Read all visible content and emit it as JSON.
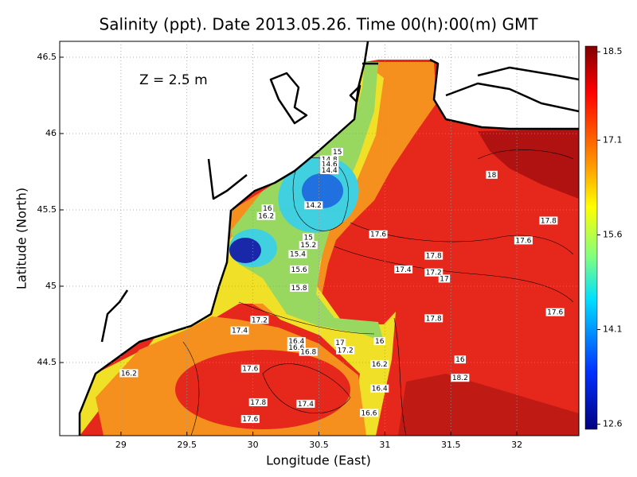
{
  "chart_data": {
    "type": "contour",
    "title": "Salinity (ppt). Date 2013.05.26. Time 00(h):00(m) GMT",
    "annotation": "Z = 2.5 m",
    "x_label": "Longitude (East)",
    "y_label": "Latitude (North)",
    "xlim": [
      28.536,
      32.47
    ],
    "ylim": [
      44.021,
      46.604
    ],
    "xticks": [
      29,
      29.5,
      30,
      30.5,
      31,
      31.5,
      32
    ],
    "yticks": [
      44.5,
      45,
      45.5,
      46,
      46.5
    ],
    "grid": true,
    "colorbar": {
      "clim": [
        12.52,
        18.59
      ],
      "ticks": [
        18.5,
        17.1,
        15.6,
        14.1,
        12.6
      ]
    },
    "contour_labels": {
      "lon": [
        30.64,
        30.58,
        30.58,
        30.58,
        30.46,
        30.11,
        30.1,
        30.42,
        30.42,
        30.34,
        30.35,
        30.35,
        30.95,
        31.37,
        31.14,
        31.37,
        31.45,
        31.81,
        32.24,
        32.05,
        32.29,
        31.37,
        30.05,
        29.9,
        30.33,
        30.33,
        30.42,
        30.66,
        30.7,
        30.96,
        30.96,
        31.57,
        31.57,
        29.06,
        29.98,
        30.96,
        30.04,
        30.4,
        30.88,
        29.98
      ],
      "lat": [
        45.88,
        45.83,
        45.8,
        45.76,
        45.53,
        45.51,
        45.46,
        45.32,
        45.27,
        45.21,
        45.11,
        44.99,
        45.34,
        45.2,
        45.11,
        45.09,
        45.05,
        45.73,
        45.43,
        45.3,
        44.83,
        44.79,
        44.78,
        44.71,
        44.64,
        44.6,
        44.57,
        44.63,
        44.58,
        44.64,
        44.49,
        44.52,
        44.4,
        44.43,
        44.46,
        44.33,
        44.24,
        44.23,
        44.17,
        44.13
      ],
      "values": [
        15,
        14.8,
        14.6,
        14.4,
        14.2,
        16,
        16.2,
        15,
        15.2,
        15.4,
        15.6,
        15.8,
        17.6,
        17.8,
        17.4,
        17.2,
        17,
        18,
        17.8,
        17.6,
        17.6,
        17.8,
        17.2,
        17.4,
        16.4,
        16.6,
        16.8,
        17,
        17.2,
        16,
        16.2,
        16,
        18.2,
        16.2,
        17.6,
        16.4,
        17.8,
        17.4,
        16.6,
        17.6
      ]
    }
  }
}
